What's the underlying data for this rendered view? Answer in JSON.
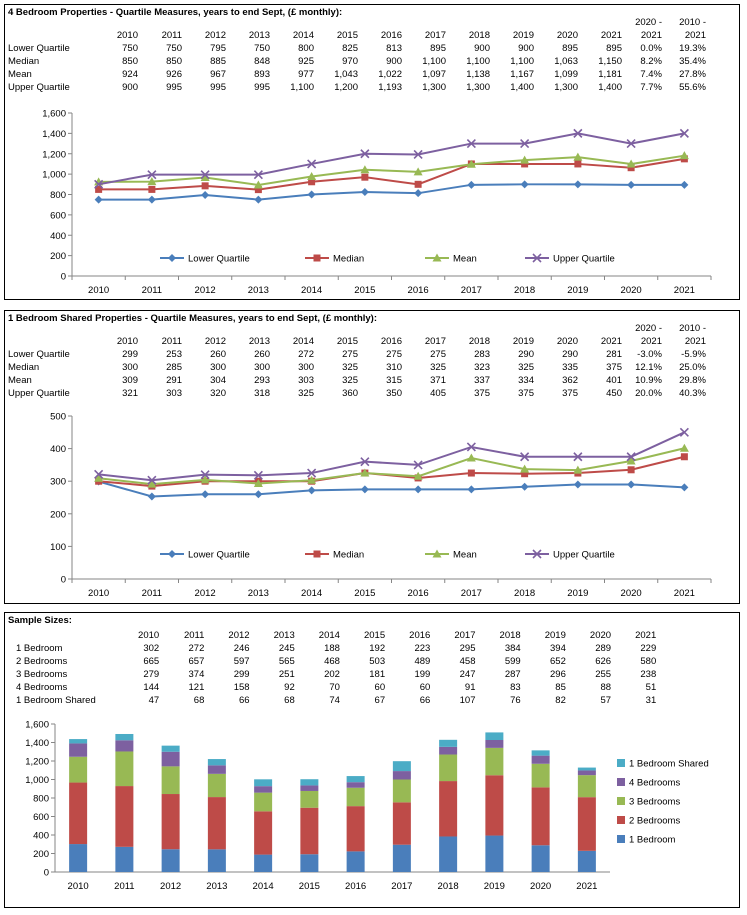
{
  "years": [
    "2010",
    "2011",
    "2012",
    "2013",
    "2014",
    "2015",
    "2016",
    "2017",
    "2018",
    "2019",
    "2020",
    "2021"
  ],
  "change_headers": {
    "a_top": "2020 -",
    "a_bottom": "2021",
    "b_top": "2010 -",
    "b_bottom": "2021"
  },
  "table1": {
    "title": "4 Bedroom Properties - Quartile Measures, years to end Sept, (£ monthly):",
    "rows": [
      {
        "label": "Lower Quartile",
        "cells": [
          "750",
          "750",
          "795",
          "750",
          "800",
          "825",
          "813",
          "895",
          "900",
          "900",
          "895",
          "895"
        ],
        "c1": "0.0%",
        "c2": "19.3%"
      },
      {
        "label": "Median",
        "cells": [
          "850",
          "850",
          "885",
          "848",
          "925",
          "970",
          "900",
          "1,100",
          "1,100",
          "1,100",
          "1,063",
          "1,150"
        ],
        "c1": "8.2%",
        "c2": "35.4%"
      },
      {
        "label": "Mean",
        "cells": [
          "924",
          "926",
          "967",
          "893",
          "977",
          "1,043",
          "1,022",
          "1,097",
          "1,138",
          "1,167",
          "1,099",
          "1,181"
        ],
        "c1": "7.4%",
        "c2": "27.8%"
      },
      {
        "label": "Upper Quartile",
        "cells": [
          "900",
          "995",
          "995",
          "995",
          "1,100",
          "1,200",
          "1,193",
          "1,300",
          "1,300",
          "1,400",
          "1,300",
          "1,400"
        ],
        "c1": "7.7%",
        "c2": "55.6%"
      }
    ]
  },
  "table2": {
    "title": "1 Bedroom Shared Properties - Quartile Measures, years to end Sept, (£ monthly):",
    "rows": [
      {
        "label": "Lower Quartile",
        "cells": [
          "299",
          "253",
          "260",
          "260",
          "272",
          "275",
          "275",
          "275",
          "283",
          "290",
          "290",
          "281"
        ],
        "c1": "-3.0%",
        "c2": "-5.9%"
      },
      {
        "label": "Median",
        "cells": [
          "300",
          "285",
          "300",
          "300",
          "300",
          "325",
          "310",
          "325",
          "323",
          "325",
          "335",
          "375"
        ],
        "c1": "12.1%",
        "c2": "25.0%"
      },
      {
        "label": "Mean",
        "cells": [
          "309",
          "291",
          "304",
          "293",
          "303",
          "325",
          "315",
          "371",
          "337",
          "334",
          "362",
          "401"
        ],
        "c1": "10.9%",
        "c2": "29.8%"
      },
      {
        "label": "Upper Quartile",
        "cells": [
          "321",
          "303",
          "320",
          "318",
          "325",
          "360",
          "350",
          "405",
          "375",
          "375",
          "375",
          "450"
        ],
        "c1": "20.0%",
        "c2": "40.3%"
      }
    ]
  },
  "table3": {
    "title": "Sample Sizes:",
    "rows": [
      {
        "label": "1 Bedroom",
        "cells": [
          "302",
          "272",
          "246",
          "245",
          "188",
          "192",
          "223",
          "295",
          "384",
          "394",
          "289",
          "229"
        ]
      },
      {
        "label": "2 Bedrooms",
        "cells": [
          "665",
          "657",
          "597",
          "565",
          "468",
          "503",
          "489",
          "458",
          "599",
          "652",
          "626",
          "580"
        ]
      },
      {
        "label": "3 Bedrooms",
        "cells": [
          "279",
          "374",
          "299",
          "251",
          "202",
          "181",
          "199",
          "247",
          "287",
          "296",
          "255",
          "238"
        ]
      },
      {
        "label": "4 Bedrooms",
        "cells": [
          "144",
          "121",
          "158",
          "92",
          "70",
          "60",
          "60",
          "91",
          "83",
          "85",
          "88",
          "51"
        ]
      },
      {
        "label": "1 Bedroom Shared",
        "cells": [
          "47",
          "68",
          "66",
          "68",
          "74",
          "67",
          "66",
          "107",
          "76",
          "82",
          "57",
          "31"
        ]
      }
    ]
  },
  "chart_data": [
    {
      "type": "line",
      "categories": [
        "2010",
        "2011",
        "2012",
        "2013",
        "2014",
        "2015",
        "2016",
        "2017",
        "2018",
        "2019",
        "2020",
        "2021"
      ],
      "ylim": [
        0,
        1600
      ],
      "yticks": [
        0,
        200,
        400,
        600,
        800,
        "1,000",
        "1,200",
        "1,400",
        "1,600"
      ],
      "grid": false,
      "legend": "bottom-inside",
      "series": [
        {
          "name": "Lower Quartile",
          "color": "#4a7ebb",
          "marker": "diamond",
          "values": [
            750,
            750,
            795,
            750,
            800,
            825,
            813,
            895,
            900,
            900,
            895,
            895
          ]
        },
        {
          "name": "Median",
          "color": "#be4b48",
          "marker": "square",
          "values": [
            850,
            850,
            885,
            848,
            925,
            970,
            900,
            1100,
            1100,
            1100,
            1063,
            1150
          ]
        },
        {
          "name": "Mean",
          "color": "#98b954",
          "marker": "triangle",
          "values": [
            924,
            926,
            967,
            893,
            977,
            1043,
            1022,
            1097,
            1138,
            1167,
            1099,
            1181
          ]
        },
        {
          "name": "Upper Quartile",
          "color": "#7d60a0",
          "marker": "x",
          "values": [
            900,
            995,
            995,
            995,
            1100,
            1200,
            1193,
            1300,
            1300,
            1400,
            1300,
            1400
          ]
        }
      ]
    },
    {
      "type": "line",
      "categories": [
        "2010",
        "2011",
        "2012",
        "2013",
        "2014",
        "2015",
        "2016",
        "2017",
        "2018",
        "2019",
        "2020",
        "2021"
      ],
      "ylim": [
        0,
        500
      ],
      "yticks": [
        0,
        100,
        200,
        300,
        400,
        500
      ],
      "grid": false,
      "legend": "bottom-inside",
      "series": [
        {
          "name": "Lower Quartile",
          "color": "#4a7ebb",
          "marker": "diamond",
          "values": [
            299,
            253,
            260,
            260,
            272,
            275,
            275,
            275,
            283,
            290,
            290,
            281
          ]
        },
        {
          "name": "Median",
          "color": "#be4b48",
          "marker": "square",
          "values": [
            300,
            285,
            300,
            300,
            300,
            325,
            310,
            325,
            323,
            325,
            335,
            375
          ]
        },
        {
          "name": "Mean",
          "color": "#98b954",
          "marker": "triangle",
          "values": [
            309,
            291,
            304,
            293,
            303,
            325,
            315,
            371,
            337,
            334,
            362,
            401
          ]
        },
        {
          "name": "Upper Quartile",
          "color": "#7d60a0",
          "marker": "x",
          "values": [
            321,
            303,
            320,
            318,
            325,
            360,
            350,
            405,
            375,
            375,
            375,
            450
          ]
        }
      ]
    },
    {
      "type": "bar",
      "stacked": true,
      "categories": [
        "2010",
        "2011",
        "2012",
        "2013",
        "2014",
        "2015",
        "2016",
        "2017",
        "2018",
        "2019",
        "2020",
        "2021"
      ],
      "ylim": [
        0,
        1600
      ],
      "yticks": [
        0,
        200,
        400,
        600,
        800,
        "1,000",
        "1,200",
        "1,400",
        "1,600"
      ],
      "grid": false,
      "legend": "right",
      "series": [
        {
          "name": "1 Bedroom",
          "color": "#4a7ebb",
          "values": [
            302,
            272,
            246,
            245,
            188,
            192,
            223,
            295,
            384,
            394,
            289,
            229
          ]
        },
        {
          "name": "2 Bedrooms",
          "color": "#be4b48",
          "values": [
            665,
            657,
            597,
            565,
            468,
            503,
            489,
            458,
            599,
            652,
            626,
            580
          ]
        },
        {
          "name": "3 Bedrooms",
          "color": "#98b954",
          "values": [
            279,
            374,
            299,
            251,
            202,
            181,
            199,
            247,
            287,
            296,
            255,
            238
          ]
        },
        {
          "name": "4 Bedrooms",
          "color": "#7d60a0",
          "values": [
            144,
            121,
            158,
            92,
            70,
            60,
            60,
            91,
            83,
            85,
            88,
            51
          ]
        },
        {
          "name": "1 Bedroom Shared",
          "color": "#4bacc6",
          "values": [
            47,
            68,
            66,
            68,
            74,
            67,
            66,
            107,
            76,
            82,
            57,
            31
          ]
        }
      ]
    }
  ]
}
